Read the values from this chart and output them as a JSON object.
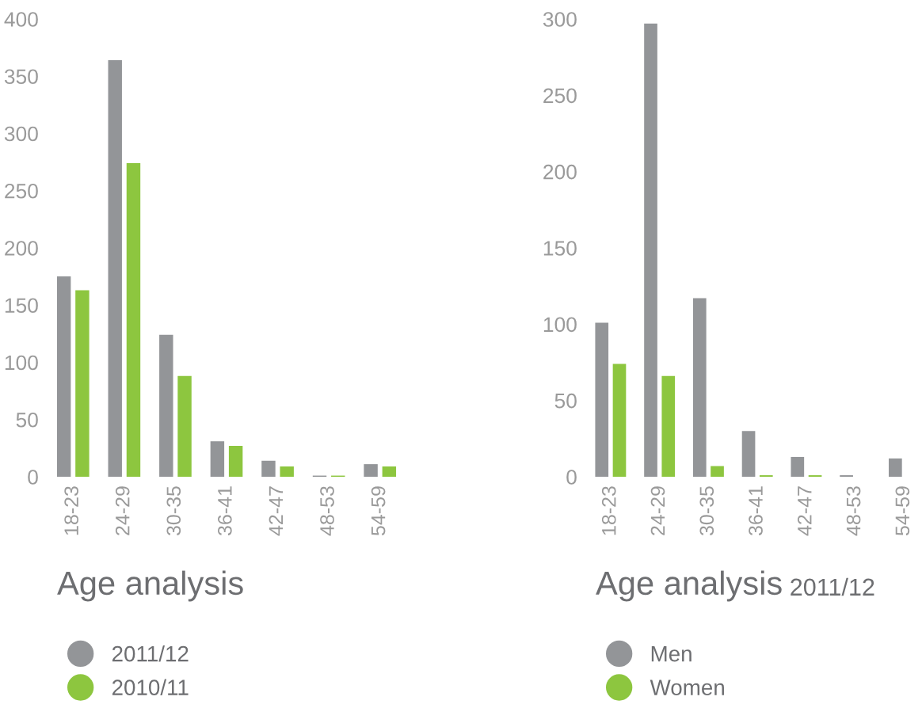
{
  "chart_data": [
    {
      "type": "bar",
      "title": "Age analysis",
      "categories": [
        "18-23",
        "24-29",
        "30-35",
        "36-41",
        "42-47",
        "48-53",
        "54-59"
      ],
      "series": [
        {
          "name": "2011/12",
          "color": "#939598",
          "values": [
            175,
            364,
            124,
            31,
            14,
            1,
            11
          ]
        },
        {
          "name": "2010/11",
          "color": "#8dc63f",
          "values": [
            163,
            274,
            88,
            27,
            9,
            1,
            9
          ]
        }
      ],
      "ylim": [
        0,
        400
      ],
      "yticks": [
        0,
        50,
        100,
        150,
        200,
        250,
        300,
        350,
        400
      ],
      "grid": false,
      "legend": "bottom"
    },
    {
      "type": "bar",
      "title": "Age analysis",
      "subtitle": "2011/12",
      "categories": [
        "18-23",
        "24-29",
        "30-35",
        "36-41",
        "42-47",
        "48-53",
        "54-59"
      ],
      "series": [
        {
          "name": "Men",
          "color": "#939598",
          "values": [
            101,
            297,
            117,
            30,
            13,
            1,
            12
          ]
        },
        {
          "name": "Women",
          "color": "#8dc63f",
          "values": [
            74,
            66,
            7,
            1,
            1,
            0,
            0
          ]
        }
      ],
      "ylim": [
        0,
        300
      ],
      "yticks": [
        0,
        50,
        100,
        150,
        200,
        250,
        300
      ],
      "grid": false,
      "legend": "bottom"
    }
  ]
}
